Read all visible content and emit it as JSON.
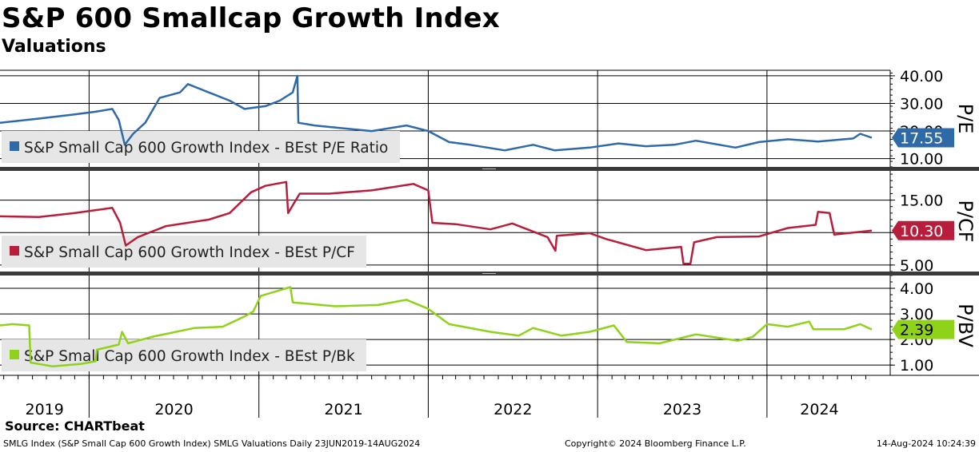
{
  "header": {
    "title": "S&P 600 Smallcap Growth Index",
    "subtitle": "Valuations"
  },
  "source": "Source: CHARTbeat",
  "footer": {
    "left": "SMLG Index (S&P Small Cap 600 Growth Index) SMLG Valuations  Daily 23JUN2019-14AUG2024",
    "middle": "Copyright© 2024 Bloomberg Finance L.P.",
    "right": "14-Aug-2024 10:24:39"
  },
  "colors": {
    "pe": "#2e69a8",
    "pcf": "#b81e3c",
    "pbk": "#8fd21a",
    "legend_bg": "#e6e6e6",
    "grid": "#000000"
  },
  "chart_data": [
    {
      "type": "line",
      "panel": "P/E",
      "axis_label": "P/E",
      "ylim": [
        7,
        42
      ],
      "yticks": [
        10,
        20,
        30,
        40
      ],
      "ytick_labels": [
        "10.00",
        "20.00",
        "30.00",
        "40.00"
      ],
      "grid": true,
      "legend_placement": "bottom-left",
      "last_value_label": "17.55",
      "series": [
        {
          "name": "S&P Small Cap 600 Growth Index - BEst P/E Ratio",
          "color": "#2e69a8",
          "last_value": 17.55,
          "points": [
            [
              "2019-06-23",
              23
            ],
            [
              "2019-09-15",
              24.5
            ],
            [
              "2019-12-01",
              26
            ],
            [
              "2020-01-15",
              27
            ],
            [
              "2020-02-20",
              28
            ],
            [
              "2020-03-05",
              24
            ],
            [
              "2020-03-18",
              15
            ],
            [
              "2020-04-05",
              19
            ],
            [
              "2020-05-01",
              23
            ],
            [
              "2020-06-01",
              32
            ],
            [
              "2020-07-15",
              34
            ],
            [
              "2020-08-01",
              37
            ],
            [
              "2020-09-15",
              34
            ],
            [
              "2020-10-30",
              31
            ],
            [
              "2020-12-01",
              28
            ],
            [
              "2021-01-15",
              29
            ],
            [
              "2021-02-15",
              31
            ],
            [
              "2021-03-15",
              34
            ],
            [
              "2021-03-25",
              40
            ],
            [
              "2021-03-27",
              23
            ],
            [
              "2021-05-01",
              22
            ],
            [
              "2021-07-01",
              21
            ],
            [
              "2021-09-01",
              20
            ],
            [
              "2021-11-15",
              22
            ],
            [
              "2022-01-01",
              20
            ],
            [
              "2022-02-15",
              16
            ],
            [
              "2022-04-01",
              15
            ],
            [
              "2022-06-15",
              13
            ],
            [
              "2022-08-15",
              15
            ],
            [
              "2022-10-01",
              13
            ],
            [
              "2022-12-15",
              14
            ],
            [
              "2023-02-15",
              15.5
            ],
            [
              "2023-04-15",
              14.5
            ],
            [
              "2023-06-15",
              15
            ],
            [
              "2023-08-01",
              16.5
            ],
            [
              "2023-10-25",
              14
            ],
            [
              "2023-12-15",
              16
            ],
            [
              "2024-02-15",
              17
            ],
            [
              "2024-04-20",
              16.2
            ],
            [
              "2024-07-05",
              17.3
            ],
            [
              "2024-07-20",
              19
            ],
            [
              "2024-08-14",
              17.55
            ]
          ]
        }
      ]
    },
    {
      "type": "line",
      "panel": "P/CF",
      "axis_label": "P/CF",
      "ylim": [
        4,
        19.5
      ],
      "yticks": [
        5,
        10,
        15
      ],
      "ytick_labels": [
        "5.00",
        "10.00",
        "15.00"
      ],
      "grid": true,
      "legend_placement": "bottom-left",
      "last_value_label": "10.30",
      "series": [
        {
          "name": "S&P Small Cap 600 Growth Index - BEst P/CF",
          "color": "#b81e3c",
          "last_value": 10.3,
          "points": [
            [
              "2019-06-23",
              12.5
            ],
            [
              "2019-09-15",
              12.4
            ],
            [
              "2019-12-01",
              13
            ],
            [
              "2020-01-20",
              13.5
            ],
            [
              "2020-02-20",
              13.8
            ],
            [
              "2020-03-08",
              11.5
            ],
            [
              "2020-03-20",
              8
            ],
            [
              "2020-04-15",
              9.3
            ],
            [
              "2020-06-15",
              11
            ],
            [
              "2020-09-15",
              12
            ],
            [
              "2020-10-30",
              13
            ],
            [
              "2020-12-15",
              16.2
            ],
            [
              "2021-01-15",
              17.2
            ],
            [
              "2021-03-01",
              17.8
            ],
            [
              "2021-03-05",
              13
            ],
            [
              "2021-03-30",
              16
            ],
            [
              "2021-06-01",
              16
            ],
            [
              "2021-09-01",
              16.5
            ],
            [
              "2021-11-30",
              17.5
            ],
            [
              "2022-01-01",
              16.5
            ],
            [
              "2022-01-10",
              11.5
            ],
            [
              "2022-03-01",
              11.3
            ],
            [
              "2022-05-15",
              10.5
            ],
            [
              "2022-07-01",
              11.4
            ],
            [
              "2022-09-15",
              9.3
            ],
            [
              "2022-10-02",
              7.2
            ],
            [
              "2022-10-05",
              9.5
            ],
            [
              "2022-12-15",
              9.9
            ],
            [
              "2023-01-20",
              9
            ],
            [
              "2023-04-15",
              7.3
            ],
            [
              "2023-06-30",
              7.8
            ],
            [
              "2023-07-05",
              5.2
            ],
            [
              "2023-07-20",
              5.2
            ],
            [
              "2023-07-28",
              8.5
            ],
            [
              "2023-09-15",
              9.3
            ],
            [
              "2023-12-15",
              9.4
            ],
            [
              "2024-02-15",
              10.7
            ],
            [
              "2024-04-15",
              11.2
            ],
            [
              "2024-04-20",
              13.2
            ],
            [
              "2024-05-15",
              13
            ],
            [
              "2024-05-25",
              9.7
            ],
            [
              "2024-08-14",
              10.3
            ]
          ]
        }
      ]
    },
    {
      "type": "line",
      "panel": "P/BV",
      "axis_label": "P/BV",
      "ylim": [
        0.6,
        4.5
      ],
      "yticks": [
        1,
        2,
        3,
        4
      ],
      "ytick_labels": [
        "1.00",
        "2.00",
        "3.00",
        "4.00"
      ],
      "grid": true,
      "legend_placement": "bottom-left",
      "last_value_label": "2.39",
      "series": [
        {
          "name": "S&P Small Cap 600 Growth Index - BEst P/Bk",
          "color": "#8fd21a",
          "last_value": 2.39,
          "points": [
            [
              "2019-06-23",
              2.55
            ],
            [
              "2019-07-20",
              2.6
            ],
            [
              "2019-08-25",
              2.55
            ],
            [
              "2019-08-28",
              1.1
            ],
            [
              "2019-10-15",
              0.95
            ],
            [
              "2019-12-15",
              1.05
            ],
            [
              "2020-01-15",
              1.15
            ],
            [
              "2020-01-18",
              1.6
            ],
            [
              "2020-03-05",
              1.8
            ],
            [
              "2020-03-12",
              2.3
            ],
            [
              "2020-03-25",
              1.85
            ],
            [
              "2020-05-15",
              2.1
            ],
            [
              "2020-08-15",
              2.45
            ],
            [
              "2020-10-15",
              2.5
            ],
            [
              "2020-12-01",
              2.9
            ],
            [
              "2020-12-20",
              3.1
            ],
            [
              "2021-01-05",
              3.7
            ],
            [
              "2021-03-10",
              4.05
            ],
            [
              "2021-03-15",
              3.45
            ],
            [
              "2021-06-15",
              3.3
            ],
            [
              "2021-09-15",
              3.35
            ],
            [
              "2021-11-15",
              3.55
            ],
            [
              "2022-01-01",
              3.2
            ],
            [
              "2022-02-15",
              2.6
            ],
            [
              "2022-05-15",
              2.3
            ],
            [
              "2022-07-15",
              2.15
            ],
            [
              "2022-08-15",
              2.45
            ],
            [
              "2022-10-15",
              2.15
            ],
            [
              "2022-12-15",
              2.3
            ],
            [
              "2023-02-05",
              2.55
            ],
            [
              "2023-03-05",
              1.9
            ],
            [
              "2023-05-15",
              1.85
            ],
            [
              "2023-08-01",
              2.2
            ],
            [
              "2023-10-30",
              1.95
            ],
            [
              "2023-12-01",
              2.1
            ],
            [
              "2024-01-01",
              2.6
            ],
            [
              "2024-02-15",
              2.5
            ],
            [
              "2024-04-01",
              2.7
            ],
            [
              "2024-04-10",
              2.4
            ],
            [
              "2024-06-15",
              2.4
            ],
            [
              "2024-07-20",
              2.6
            ],
            [
              "2024-08-14",
              2.39
            ]
          ]
        }
      ]
    }
  ],
  "x_axis": {
    "year_labels": [
      "2019",
      "2020",
      "2021",
      "2022",
      "2023",
      "2024"
    ],
    "x_start": "2019-06-23",
    "x_end": "2024-08-14"
  }
}
